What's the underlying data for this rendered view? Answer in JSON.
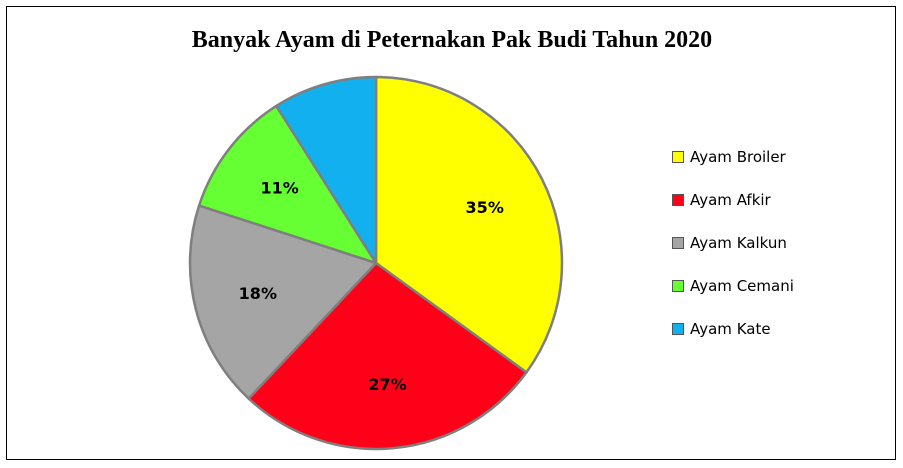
{
  "chart_data": {
    "type": "pie",
    "title": "Banyak Ayam di Peternakan Pak Budi Tahun 2020",
    "slices": [
      {
        "label": "Ayam Broiler",
        "value": 35,
        "data_label": "35%",
        "color": "#FFFF00"
      },
      {
        "label": "Ayam Afkir",
        "value": 27,
        "data_label": "27%",
        "color": "#FF0019"
      },
      {
        "label": "Ayam Kalkun",
        "value": 18,
        "data_label": "18%",
        "color": "#A5A5A5"
      },
      {
        "label": "Ayam Cemani",
        "value": 11,
        "data_label": "11%",
        "color": "#66FF33"
      },
      {
        "label": "Ayam Kate",
        "value": 9,
        "data_label": "",
        "color": "#13B0F0"
      }
    ],
    "legend_position": "right",
    "slice_border_color": "#7F7F7F"
  }
}
